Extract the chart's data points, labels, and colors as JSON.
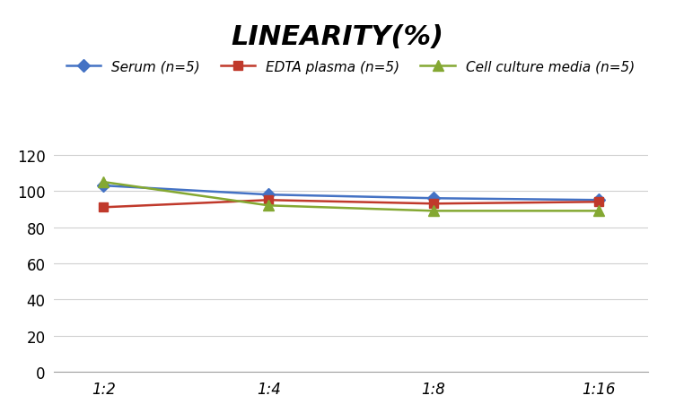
{
  "title": "LINEARITY(%)",
  "x_labels": [
    "1:2",
    "1:4",
    "1:8",
    "1:16"
  ],
  "x_positions": [
    0,
    1,
    2,
    3
  ],
  "series": [
    {
      "label": "Serum (n=5)",
      "values": [
        103,
        98,
        96,
        95
      ],
      "color": "#4472C4",
      "marker": "D",
      "markersize": 7,
      "linewidth": 1.8
    },
    {
      "label": "EDTA plasma (n=5)",
      "values": [
        91,
        95,
        93,
        94
      ],
      "color": "#C0392B",
      "marker": "s",
      "markersize": 7,
      "linewidth": 1.8
    },
    {
      "label": "Cell culture media (n=5)",
      "values": [
        105,
        92,
        89,
        89
      ],
      "color": "#84A832",
      "marker": "^",
      "markersize": 8,
      "linewidth": 1.8
    }
  ],
  "ylim": [
    0,
    130
  ],
  "yticks": [
    0,
    20,
    40,
    60,
    80,
    100,
    120
  ],
  "grid_color": "#D0D0D0",
  "background_color": "#FFFFFF",
  "title_fontsize": 22,
  "legend_fontsize": 11,
  "tick_fontsize": 12
}
